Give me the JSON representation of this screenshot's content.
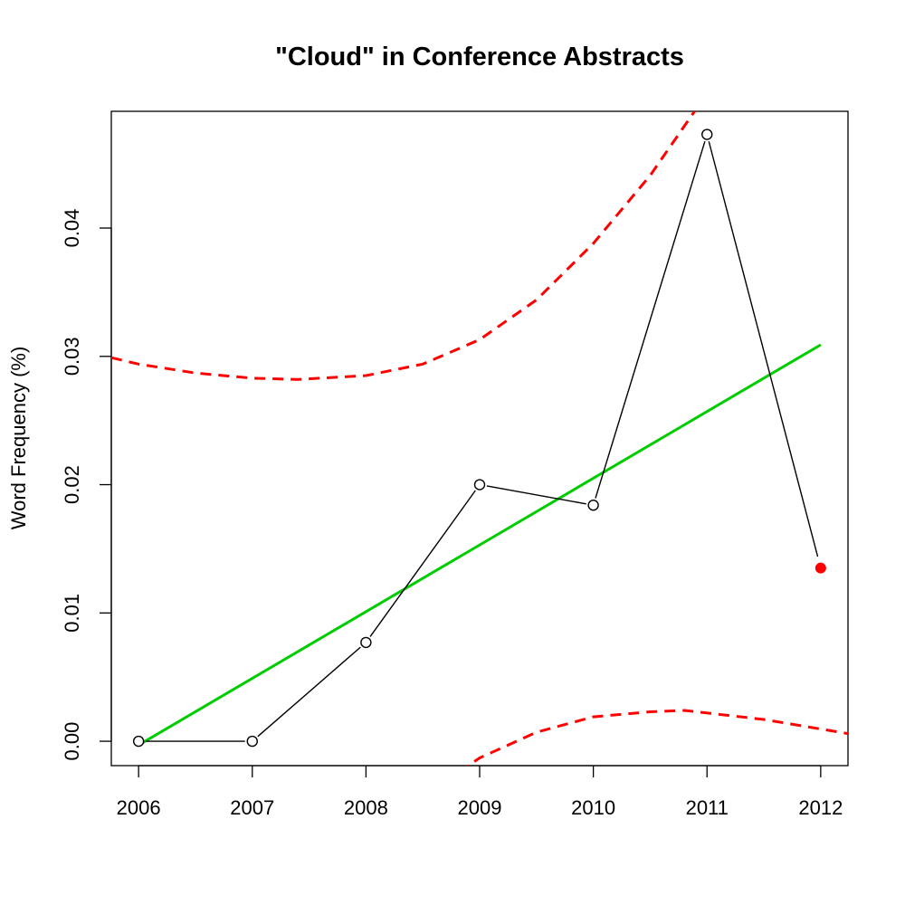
{
  "chart_data": {
    "type": "line",
    "title": "\"Cloud\" in Conference Abstracts",
    "xlabel": "",
    "ylabel": "Word Frequency (%)",
    "x": [
      2006,
      2007,
      2008,
      2009,
      2010,
      2011,
      2012
    ],
    "x_tick_labels": [
      "2006",
      "2007",
      "2008",
      "2009",
      "2010",
      "2011",
      "2012"
    ],
    "y_tick_labels": [
      "0.00",
      "0.01",
      "0.02",
      "0.03",
      "0.04"
    ],
    "xlim": [
      2005.76,
      2012.24
    ],
    "ylim": [
      -0.0019,
      0.0491
    ],
    "grid": false,
    "series": [
      {
        "style": "line-with-open-circles",
        "color": "#000000",
        "x": [
          2006,
          2007,
          2008,
          2009,
          2010,
          2011
        ],
        "values": [
          0.0,
          0.0,
          0.0077,
          0.02,
          0.0184,
          0.0473
        ]
      },
      {
        "style": "filled-point",
        "color": "#ff0000",
        "x": [
          2012
        ],
        "values": [
          0.0135
        ]
      },
      {
        "style": "solid-line",
        "color": "#00cd00",
        "x": [
          2006,
          2012
        ],
        "values": [
          -0.0003,
          0.0309
        ]
      },
      {
        "style": "dashed-line",
        "color": "#ff0000",
        "x": [
          2005.76,
          2006,
          2006.5,
          2007,
          2007.4,
          2008,
          2008.5,
          2009,
          2009.5,
          2010,
          2010.5,
          2011,
          2012.24
        ],
        "values": [
          0.0299,
          0.0294,
          0.0287,
          0.0283,
          0.0282,
          0.0285,
          0.0294,
          0.0313,
          0.0344,
          0.0388,
          0.0441,
          0.0505,
          0.0655
        ]
      },
      {
        "style": "dashed-line",
        "color": "#ff0000",
        "x": [
          2008.5,
          2008.8,
          2009,
          2009.5,
          2010,
          2010.5,
          2010.8,
          2011.5,
          2012.24
        ],
        "values": [
          -0.0055,
          -0.0025,
          -0.0013,
          0.0007,
          0.0019,
          0.0023,
          0.0024,
          0.0017,
          0.0006
        ]
      }
    ]
  }
}
